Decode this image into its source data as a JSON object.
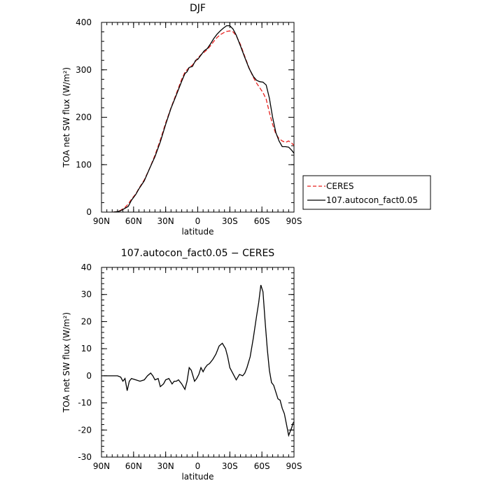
{
  "chart_data": [
    {
      "type": "line",
      "title": "DJF",
      "xlabel": "latitude",
      "ylabel": "TOA net SW flux (W/m²)",
      "x_tick_labels": [
        "90N",
        "60N",
        "30N",
        "0",
        "30S",
        "60S",
        "90S"
      ],
      "x_tick_values": [
        90,
        60,
        30,
        0,
        -30,
        -60,
        -90
      ],
      "xlim": [
        90,
        -90
      ],
      "ylim": [
        0,
        400
      ],
      "y_ticks": [
        0,
        100,
        200,
        300,
        400
      ],
      "grid": false,
      "legend_position": "right-middle",
      "series": [
        {
          "name": "CERES",
          "color": "#e8201e",
          "dash": "dashed",
          "x": [
            79,
            75,
            72,
            68,
            65,
            62,
            58,
            55,
            50,
            45,
            40,
            35,
            30,
            25,
            20,
            15,
            12,
            10,
            8,
            5,
            2,
            0,
            -3,
            -6,
            -9,
            -12,
            -15,
            -18,
            -21,
            -24,
            -27,
            -30,
            -33,
            -36,
            -40,
            -44,
            -48,
            -52,
            -55,
            -58,
            -61,
            -64,
            -67,
            -70,
            -73,
            -76,
            -79,
            -82,
            -85,
            -88,
            -90
          ],
          "y": [
            0,
            1,
            4,
            10,
            17,
            27,
            38,
            50,
            68,
            92,
            120,
            152,
            188,
            220,
            250,
            280,
            295,
            300,
            305,
            310,
            318,
            325,
            332,
            337,
            343,
            351,
            360,
            368,
            374,
            378,
            381,
            382,
            380,
            372,
            353,
            328,
            304,
            284,
            272,
            262,
            252,
            238,
            210,
            185,
            165,
            155,
            150,
            147,
            150,
            145,
            141
          ]
        },
        {
          "name": "107.autocon_fact0.05",
          "color": "#000000",
          "dash": "solid",
          "x": [
            79,
            75,
            72,
            68,
            65,
            62,
            58,
            55,
            50,
            45,
            40,
            35,
            30,
            25,
            20,
            15,
            12,
            10,
            8,
            5,
            2,
            0,
            -3,
            -6,
            -9,
            -12,
            -15,
            -18,
            -21,
            -24,
            -27,
            -30,
            -33,
            -36,
            -40,
            -44,
            -48,
            -52,
            -55,
            -58,
            -61,
            -64,
            -67,
            -70,
            -73,
            -76,
            -79,
            -82,
            -85,
            -88,
            -90
          ],
          "y": [
            0,
            1,
            3,
            8,
            12,
            25,
            37,
            49,
            66,
            92,
            117,
            148,
            185,
            219,
            247,
            276,
            292,
            296,
            305,
            307,
            320,
            322,
            331,
            340,
            345,
            355,
            366,
            375,
            382,
            388,
            393,
            393,
            386,
            373,
            350,
            326,
            303,
            286,
            278,
            275,
            274,
            268,
            240,
            200,
            168,
            150,
            138,
            138,
            137,
            130,
            124
          ]
        }
      ]
    },
    {
      "type": "line",
      "title": "107.autocon_fact0.05 − CERES",
      "xlabel": "latitude",
      "ylabel": "TOA net SW flux (W/m²)",
      "x_tick_labels": [
        "90N",
        "60N",
        "30N",
        "0",
        "30S",
        "60S",
        "90S"
      ],
      "x_tick_values": [
        90,
        60,
        30,
        0,
        -30,
        -60,
        -90
      ],
      "xlim": [
        90,
        -90
      ],
      "ylim": [
        -30,
        40
      ],
      "y_ticks": [
        -30,
        -20,
        -10,
        0,
        10,
        20,
        30,
        40
      ],
      "grid": false,
      "series": [
        {
          "color": "#000000",
          "dash": "solid",
          "x": [
            88,
            80,
            75,
            72,
            70,
            68,
            66,
            64,
            62,
            58,
            54,
            50,
            47,
            44,
            42,
            40,
            37,
            35,
            32,
            30,
            27,
            24,
            22,
            20,
            18,
            15,
            12,
            10,
            8,
            6,
            3,
            1,
            -1,
            -3,
            -5,
            -7,
            -9,
            -11,
            -14,
            -17,
            -20,
            -23,
            -26,
            -28,
            -30,
            -32,
            -34,
            -36,
            -39,
            -42,
            -44,
            -46,
            -49,
            -52,
            -55,
            -57,
            -59,
            -61,
            -63,
            -65,
            -67,
            -69,
            -71,
            -73,
            -75,
            -77,
            -79,
            -81,
            -83,
            -85,
            -86,
            -87,
            -88,
            -89,
            -90
          ],
          "y": [
            0,
            0,
            0,
            -0.5,
            -2,
            -1,
            -5.5,
            -2,
            -1,
            -1.5,
            -2,
            -1.5,
            0,
            1,
            0,
            -1.5,
            -1,
            -4,
            -3,
            -1.5,
            -1,
            -3,
            -2,
            -2,
            -1.5,
            -3,
            -5,
            -2,
            3,
            2,
            -2,
            -1,
            0.5,
            3,
            1.5,
            3,
            4,
            4.5,
            6,
            8,
            11,
            12,
            10,
            7,
            3,
            1.5,
            0,
            -1.5,
            0.5,
            0,
            1,
            3,
            7,
            14,
            22,
            27,
            33.5,
            31,
            20,
            10,
            2,
            -2.5,
            -3.5,
            -6,
            -8.5,
            -9,
            -12,
            -14,
            -18,
            -22,
            -21,
            -20,
            -19,
            -17.5,
            -17
          ]
        }
      ]
    }
  ]
}
